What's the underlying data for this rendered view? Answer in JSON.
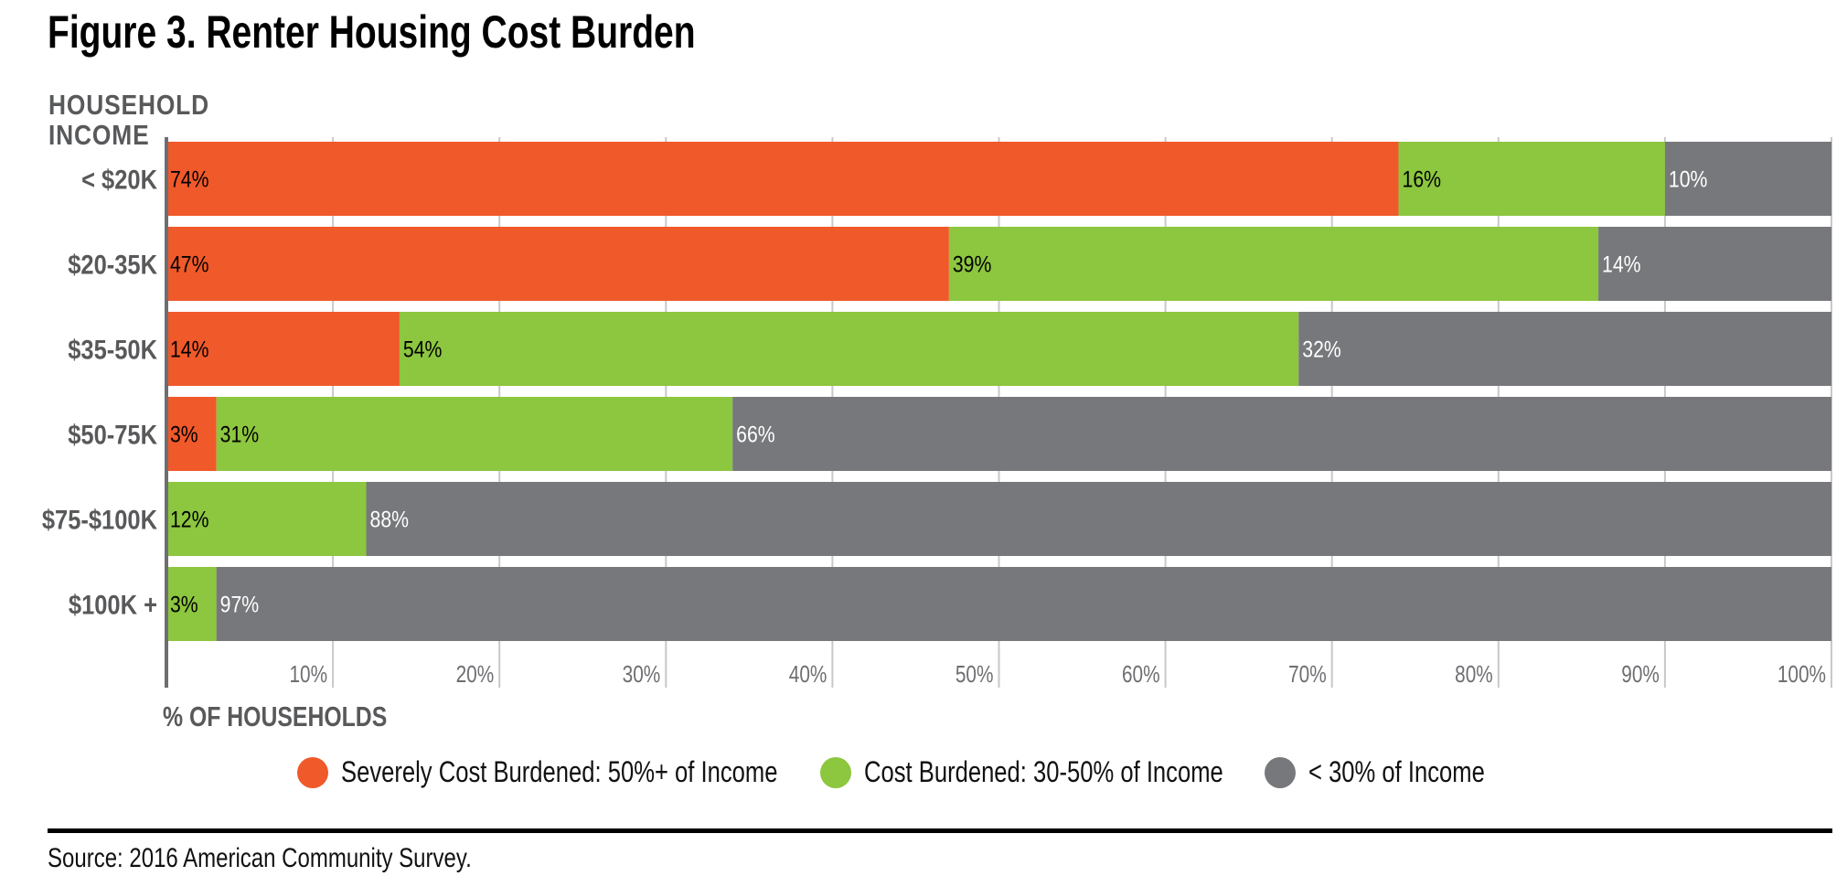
{
  "chart_data": {
    "type": "bar",
    "orientation": "horizontal",
    "stacked": true,
    "title": "Figure 3. Renter Housing Cost Burden",
    "ylabel": "HOUSEHOLD INCOME",
    "xlabel": "% OF HOUSEHOLDS",
    "categories": [
      "< $20K",
      "$20-35K",
      "$35-50K",
      "$50-75K",
      "$75-$100K",
      "$100K +"
    ],
    "series": [
      {
        "name": "Severely Cost Burdened: 50%+ of Income",
        "color": "#f0592a",
        "values": [
          74,
          47,
          14,
          3,
          0,
          0
        ]
      },
      {
        "name": "Cost Burdened: 30-50% of Income",
        "color": "#8dc63f",
        "values": [
          16,
          39,
          54,
          31,
          12,
          3
        ]
      },
      {
        "name": "< 30% of Income",
        "color": "#77787b",
        "values": [
          10,
          14,
          32,
          66,
          88,
          97
        ]
      }
    ],
    "xlim": [
      0,
      100
    ],
    "xticks": [
      "10%",
      "20%",
      "30%",
      "40%",
      "50%",
      "60%",
      "70%",
      "80%",
      "90%",
      "100%"
    ],
    "grid": true,
    "legend": "bottom",
    "source": "Source: 2016 American Community Survey."
  }
}
